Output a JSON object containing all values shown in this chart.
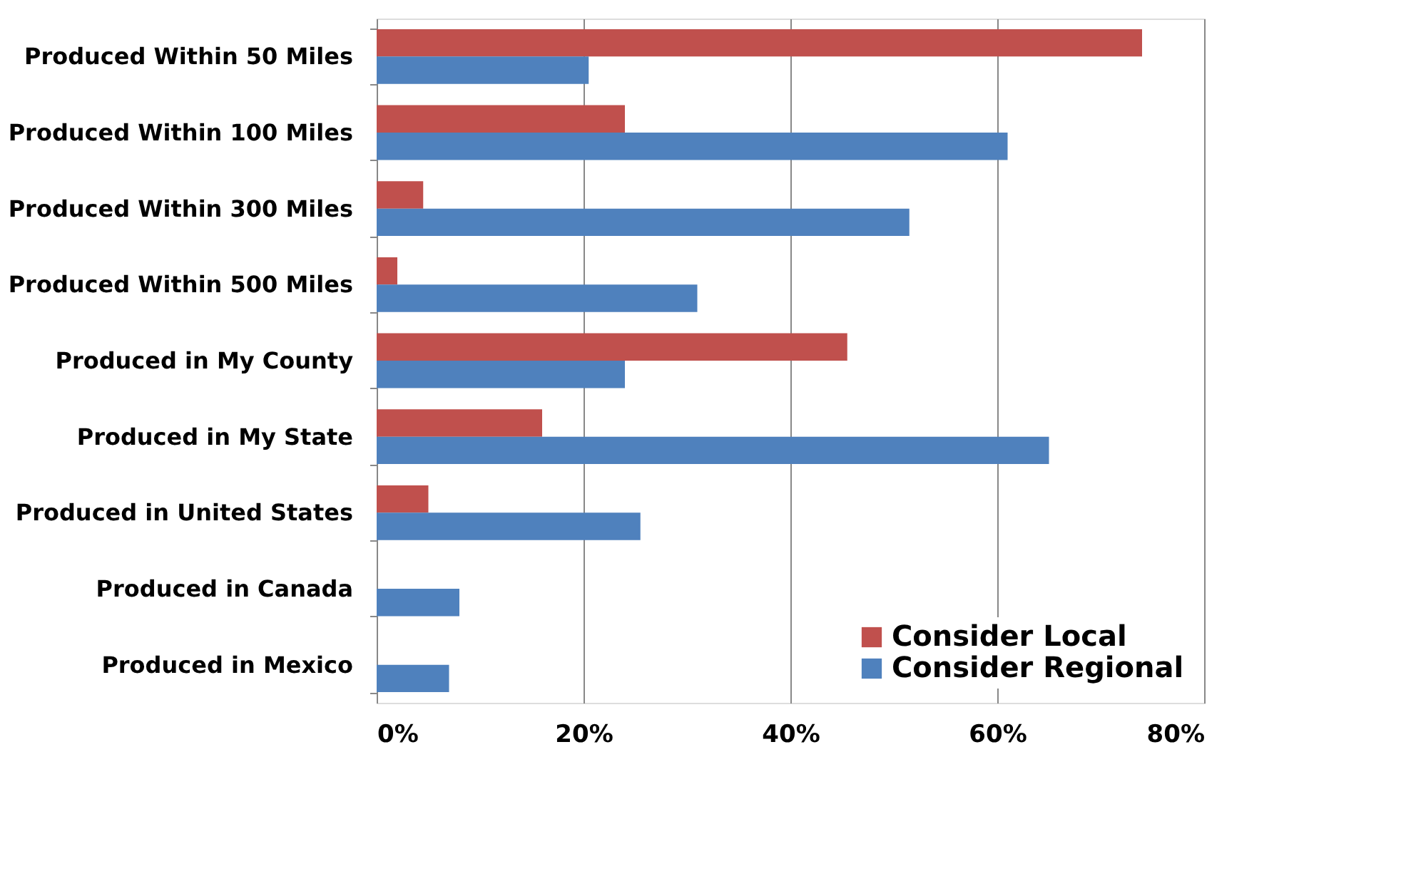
{
  "chart_data": {
    "type": "bar",
    "orientation": "horizontal",
    "categories": [
      "Produced Within 50 Miles",
      "Produced Within 100 Miles",
      "Produced Within 300 Miles",
      "Produced Within 500 Miles",
      "Produced in My County",
      "Produced in My State",
      "Produced in United States",
      "Produced in Canada",
      "Produced in Mexico"
    ],
    "series": [
      {
        "name": "Consider Local",
        "color": "#c0504d",
        "values": [
          74,
          24,
          4.5,
          2,
          45.5,
          16,
          5,
          null,
          null
        ]
      },
      {
        "name": "Consider Regional",
        "color": "#4f81bd",
        "values": [
          20.5,
          61,
          51.5,
          31,
          24,
          65,
          25.5,
          8,
          7
        ]
      }
    ],
    "xlim": [
      0,
      80
    ],
    "xticks": [
      {
        "value": 0,
        "label": "0%"
      },
      {
        "value": 20,
        "label": "20%"
      },
      {
        "value": 40,
        "label": "40%"
      },
      {
        "value": 60,
        "label": "60%"
      },
      {
        "value": 80,
        "label": "80%"
      }
    ],
    "grid": "x",
    "legend": "bottom right"
  }
}
